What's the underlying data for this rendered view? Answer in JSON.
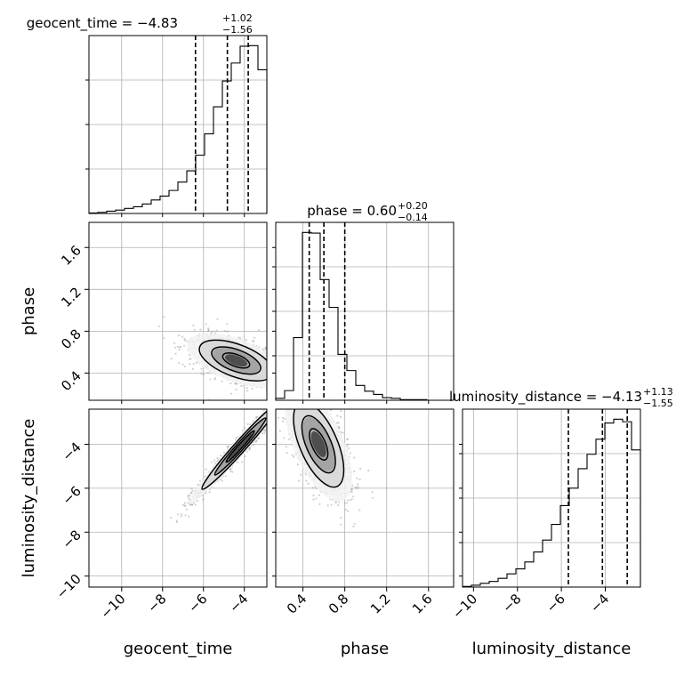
{
  "chart_data": {
    "type": "corner",
    "parameters": [
      "geocent_time",
      "phase",
      "luminosity_distance"
    ],
    "axis_labels": [
      "geocent_time",
      "phase",
      "luminosity_distance"
    ],
    "titles": [
      {
        "param": "geocent_time",
        "prefix": "geocent_time = −4.83",
        "plus": "+1.02",
        "minus": "−1.56"
      },
      {
        "param": "phase",
        "prefix": "phase = 0.60",
        "plus": "+0.20",
        "minus": "−0.14"
      },
      {
        "param": "luminosity_distance",
        "prefix": "luminosity_distance = −4.13",
        "plus": "+1.13",
        "minus": "−1.55"
      }
    ],
    "ranges": {
      "geocent_time": [
        -11.6,
        -2.9
      ],
      "phase": [
        0.14,
        1.84
      ],
      "luminosity_distance": [
        -10.5,
        -2.4
      ]
    },
    "ticks": {
      "geocent_time": {
        "values": [
          -10,
          -8,
          -6,
          -4
        ],
        "labels": [
          "−10",
          "−8",
          "−6",
          "−4"
        ]
      },
      "phase": {
        "values": [
          0.4,
          0.8,
          1.2,
          1.6
        ],
        "labels": [
          "0.4",
          "0.8",
          "1.2",
          "1.6"
        ]
      },
      "luminosity_distance": {
        "values": [
          -10,
          -8,
          -6,
          -4
        ],
        "labels": [
          "−10",
          "−8",
          "−6",
          "−4"
        ]
      }
    },
    "histograms": {
      "geocent_time": {
        "bins": [
          -11.6,
          -11.165,
          -10.73,
          -10.295,
          -9.86,
          -9.425,
          -8.99,
          -8.555,
          -8.12,
          -7.685,
          -7.25,
          -6.815,
          -6.38,
          -5.945,
          -5.51,
          -5.075,
          -4.64,
          -4.205,
          -3.77,
          -3.335,
          -2.9
        ],
        "counts": [
          1,
          2,
          4,
          6,
          9,
          12,
          17,
          24,
          31,
          41,
          56,
          76,
          104,
          142,
          190,
          236,
          268,
          298,
          299,
          256
        ],
        "quantiles": [
          -6.39,
          -4.83,
          -3.81
        ]
      },
      "phase": {
        "bins": [
          0.14,
          0.225,
          0.31,
          0.395,
          0.48,
          0.565,
          0.65,
          0.735,
          0.82,
          0.905,
          0.99,
          1.075,
          1.16,
          1.245,
          1.33,
          1.415,
          1.5,
          1.585,
          1.67,
          1.755,
          1.84
        ],
        "counts": [
          3,
          15,
          97,
          260,
          259,
          187,
          144,
          71,
          46,
          23,
          14,
          9,
          4,
          3,
          1,
          1,
          1,
          0,
          0,
          0
        ],
        "quantiles": [
          0.46,
          0.6,
          0.8
        ]
      },
      "luminosity_distance": {
        "bins": [
          -10.5,
          -10.095,
          -9.69,
          -9.285,
          -8.88,
          -8.475,
          -8.07,
          -7.665,
          -7.26,
          -6.855,
          -6.45,
          -6.045,
          -5.64,
          -5.235,
          -4.83,
          -4.425,
          -4.02,
          -3.615,
          -3.21,
          -2.805,
          -2.4
        ],
        "counts": [
          1,
          3,
          6,
          9,
          14,
          21,
          29,
          40,
          56,
          75,
          100,
          130,
          158,
          189,
          212,
          236,
          262,
          268,
          264,
          219
        ],
        "quantiles": [
          -5.68,
          -4.13,
          -3.0
        ]
      }
    },
    "pairs": [
      {
        "x": "geocent_time",
        "y": "phase",
        "center": [
          -4.4,
          0.52
        ],
        "sigma": [
          1.2,
          0.13
        ],
        "correlation": -0.55
      },
      {
        "x": "geocent_time",
        "y": "luminosity_distance",
        "center": [
          -4.2,
          -4.1
        ],
        "sigma": [
          1.25,
          1.3
        ],
        "correlation": 0.98
      },
      {
        "x": "phase",
        "y": "luminosity_distance",
        "center": [
          0.55,
          -4.0
        ],
        "sigma": [
          0.16,
          1.3
        ],
        "correlation": -0.6
      }
    ],
    "grid": true,
    "legend": "none"
  }
}
